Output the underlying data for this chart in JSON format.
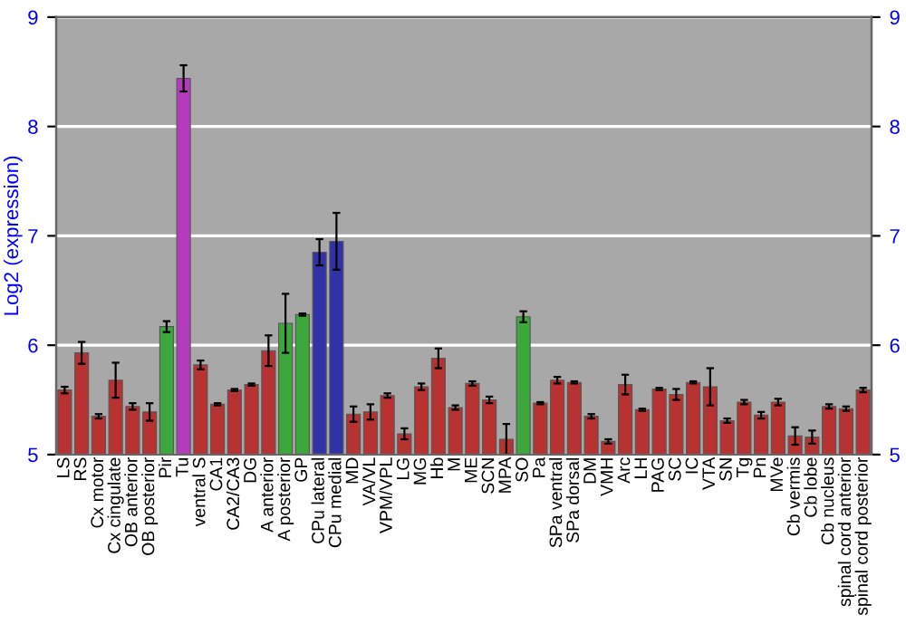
{
  "chart_data": {
    "type": "bar",
    "ylabel": "Log2 (expression)",
    "categories": [
      "LS",
      "RS",
      "Cx motor",
      "Cx cingulate",
      "OB anterior",
      "OB posterior",
      "Pir",
      "Tu",
      "ventral S",
      "CA1",
      "CA2/CA3",
      "DG",
      "A anterior",
      "A posterior",
      "GP",
      "CPu lateral",
      "CPu medial",
      "MD",
      "VA/VL",
      "VPM/VPL",
      "LG",
      "MG",
      "Hb",
      "M",
      "ME",
      "SCN",
      "MPA",
      "SO",
      "Pa",
      "SPa ventral",
      "SPa dorsal",
      "DM",
      "VMH",
      "Arc",
      "LH",
      "PAG",
      "SC",
      "IC",
      "VTA",
      "SN",
      "Tg",
      "Pn",
      "MVe",
      "Cb vermis",
      "Cb lobe",
      "Cb nucleus",
      "spinal cord anterior",
      "spinal cord posterior"
    ],
    "values": [
      5.59,
      5.93,
      5.35,
      5.68,
      5.44,
      5.39,
      6.17,
      8.44,
      5.82,
      5.46,
      5.59,
      5.64,
      5.95,
      6.2,
      6.28,
      6.85,
      6.95,
      5.37,
      5.39,
      5.54,
      5.19,
      5.62,
      5.88,
      5.43,
      5.65,
      5.5,
      5.14,
      6.26,
      5.47,
      5.68,
      5.66,
      5.35,
      5.12,
      5.64,
      5.41,
      5.6,
      5.55,
      5.66,
      5.62,
      5.31,
      5.48,
      5.36,
      5.48,
      5.17,
      5.16,
      5.44,
      5.42,
      5.59
    ],
    "errors": [
      0.03,
      0.1,
      0.02,
      0.16,
      0.03,
      0.08,
      0.05,
      0.12,
      0.04,
      0.01,
      0.01,
      0.01,
      0.14,
      0.27,
      0.01,
      0.12,
      0.26,
      0.07,
      0.07,
      0.02,
      0.05,
      0.03,
      0.09,
      0.02,
      0.02,
      0.03,
      0.14,
      0.05,
      0.01,
      0.03,
      0.01,
      0.02,
      0.02,
      0.09,
      0.01,
      0.01,
      0.05,
      0.01,
      0.17,
      0.02,
      0.02,
      0.03,
      0.03,
      0.08,
      0.06,
      0.02,
      0.02,
      0.02
    ],
    "colors": [
      "#b83232",
      "#b83232",
      "#b83232",
      "#b83232",
      "#b83232",
      "#b83232",
      "#3ca83c",
      "#b43cbc",
      "#b83232",
      "#b83232",
      "#b83232",
      "#b83232",
      "#b83232",
      "#3ca83c",
      "#3ca83c",
      "#3232a8",
      "#3232a8",
      "#b83232",
      "#b83232",
      "#b83232",
      "#b83232",
      "#b83232",
      "#b83232",
      "#b83232",
      "#b83232",
      "#b83232",
      "#b83232",
      "#3ca83c",
      "#b83232",
      "#b83232",
      "#b83232",
      "#b83232",
      "#b83232",
      "#b83232",
      "#b83232",
      "#b83232",
      "#b83232",
      "#b83232",
      "#b83232",
      "#b83232",
      "#b83232",
      "#b83232",
      "#b83232",
      "#b83232",
      "#b83232",
      "#b83232",
      "#b83232",
      "#b83232"
    ],
    "ylim": [
      5,
      9
    ],
    "yticks": [
      5,
      6,
      7,
      8,
      9
    ],
    "y2lim": [
      5,
      9
    ],
    "y2ticks": [
      5,
      6,
      7,
      8,
      9
    ],
    "grid": "y"
  }
}
